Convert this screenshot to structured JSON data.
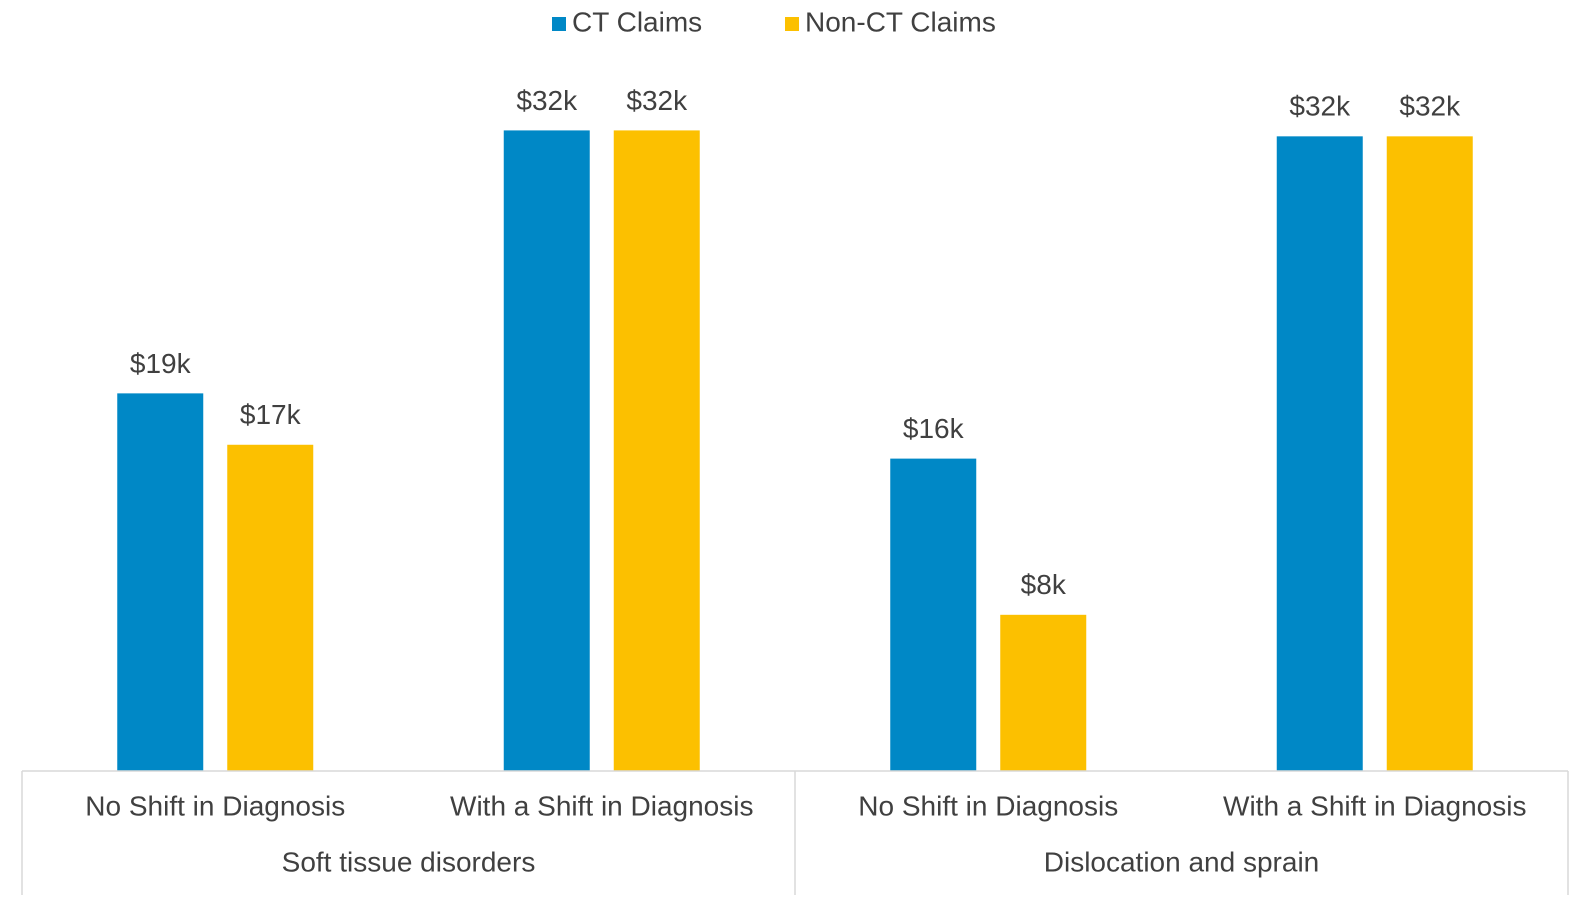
{
  "chart_data": {
    "type": "bar",
    "categories": [
      "No Shift in Diagnosis",
      "With a Shift in Diagnosis",
      "No Shift in Diagnosis",
      "With a Shift in Diagnosis"
    ],
    "category_groups": [
      "Soft tissue disorders",
      "Dislocation and sprain"
    ],
    "series": [
      {
        "name": "CT Claims",
        "color": "#0088c6",
        "values": [
          19.1,
          32.4,
          15.8,
          32.1
        ],
        "value_labels": [
          "$19k",
          "$32k",
          "$16k",
          "$32k"
        ]
      },
      {
        "name": "Non-CT Claims",
        "color": "#fcc000",
        "values": [
          16.5,
          32.4,
          7.9,
          32.1
        ],
        "value_labels": [
          "$17k",
          "$32k",
          "$8k",
          "$32k"
        ]
      }
    ],
    "ylim": [
      0,
      35
    ],
    "legend": "top"
  }
}
